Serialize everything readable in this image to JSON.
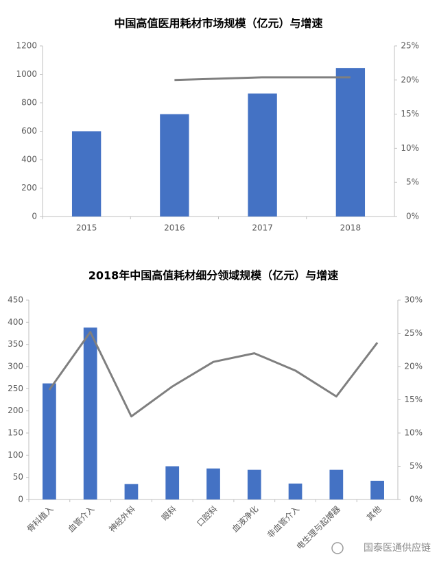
{
  "chart_data": [
    {
      "type": "combo",
      "title": "中国高值医用耗材市场规模（亿元）与增速",
      "categories": [
        "2015",
        "2016",
        "2017",
        "2018"
      ],
      "series": [
        {
          "type": "bar",
          "color": "#4472c4",
          "values": [
            600,
            720,
            865,
            1045
          ]
        },
        {
          "type": "line",
          "color": "#7f7f7f",
          "axis": "y2",
          "values": [
            null,
            20.0,
            20.4,
            20.4
          ]
        }
      ],
      "ylim": [
        0,
        1200
      ],
      "yticks": [
        0,
        200,
        400,
        600,
        800,
        1000,
        1200
      ],
      "y2lim": [
        0,
        25
      ],
      "y2ticks": [
        {
          "value": 0,
          "label": "0%"
        },
        {
          "value": 5,
          "label": "5%"
        },
        {
          "value": 10,
          "label": "10%"
        },
        {
          "value": 15,
          "label": "15%"
        },
        {
          "value": 20,
          "label": "20%"
        },
        {
          "value": 25,
          "label": "25%"
        }
      ],
      "grid": false,
      "rotate_labels": false
    },
    {
      "type": "combo",
      "title": "2018年中国高值耗材细分领域规模（亿元）与增速",
      "categories": [
        "骨科植入",
        "血管介入",
        "神经外科",
        "眼科",
        "口腔科",
        "血液净化",
        "非血管介入",
        "电生理与起搏器",
        "其他"
      ],
      "series": [
        {
          "type": "bar",
          "color": "#4472c4",
          "values": [
            262,
            388,
            35,
            75,
            70,
            67,
            36,
            67,
            42
          ]
        },
        {
          "type": "line",
          "color": "#7f7f7f",
          "axis": "y2",
          "values": [
            16.5,
            25.2,
            12.5,
            17.0,
            20.7,
            22.0,
            19.4,
            15.5,
            23.6
          ]
        }
      ],
      "ylim": [
        0,
        450
      ],
      "yticks": [
        0,
        50,
        100,
        150,
        200,
        250,
        300,
        350,
        400,
        450
      ],
      "y2lim": [
        0,
        30
      ],
      "y2ticks": [
        {
          "value": 0,
          "label": "0%"
        },
        {
          "value": 5,
          "label": "5%"
        },
        {
          "value": 10,
          "label": "10%"
        },
        {
          "value": 15,
          "label": "15%"
        },
        {
          "value": 20,
          "label": "20%"
        },
        {
          "value": 25,
          "label": "25%"
        },
        {
          "value": 30,
          "label": "30%"
        }
      ],
      "grid": false,
      "rotate_labels": true
    }
  ],
  "watermark": "国泰医通供应链"
}
